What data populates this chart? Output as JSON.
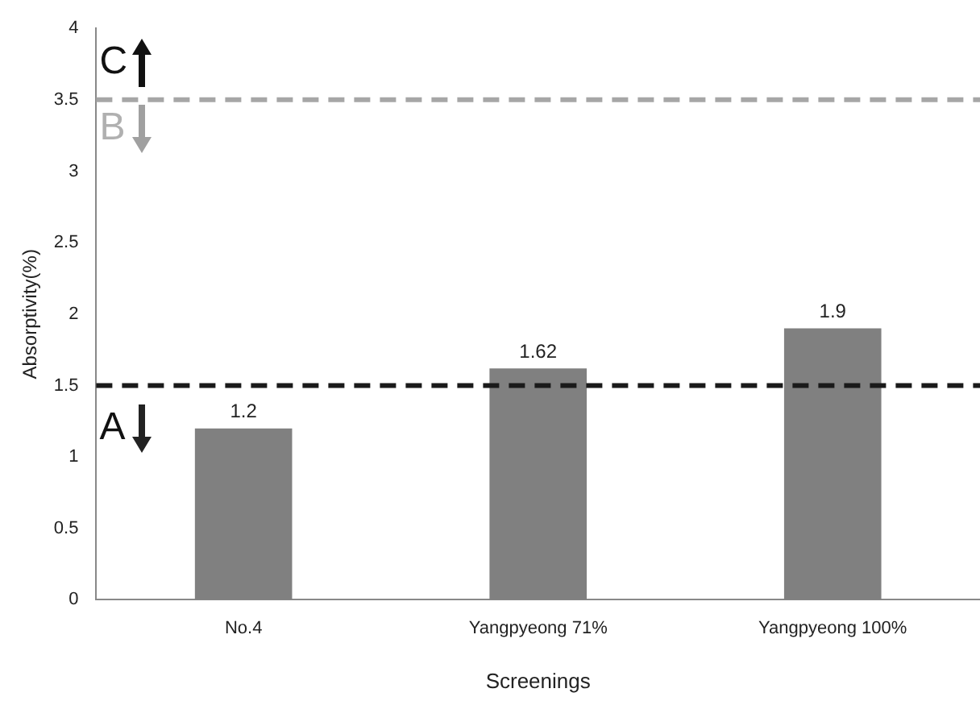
{
  "chart_data": {
    "type": "bar",
    "xlabel": "Screenings",
    "ylabel": "Absorptivity(%)",
    "categories": [
      "No.4",
      "Yangpyeong 71%",
      "Yangpyeong 100%"
    ],
    "values": [
      1.2,
      1.62,
      1.9
    ],
    "color": "#808080",
    "ylim": [
      0,
      4
    ],
    "yticks": [
      0,
      0.5,
      1,
      1.5,
      2,
      2.5,
      3,
      3.5,
      4
    ],
    "grid": false,
    "data_labels": true,
    "legend": false,
    "ref_lines": [
      {
        "axis": "y",
        "value": 3.5,
        "color": "#a6a6a6",
        "line_style": "dashed"
      },
      {
        "axis": "y",
        "value": 1.5,
        "color": "#1a1a1a",
        "line_style": "dashed"
      }
    ],
    "annotations": [
      "C",
      "B",
      "A"
    ]
  }
}
